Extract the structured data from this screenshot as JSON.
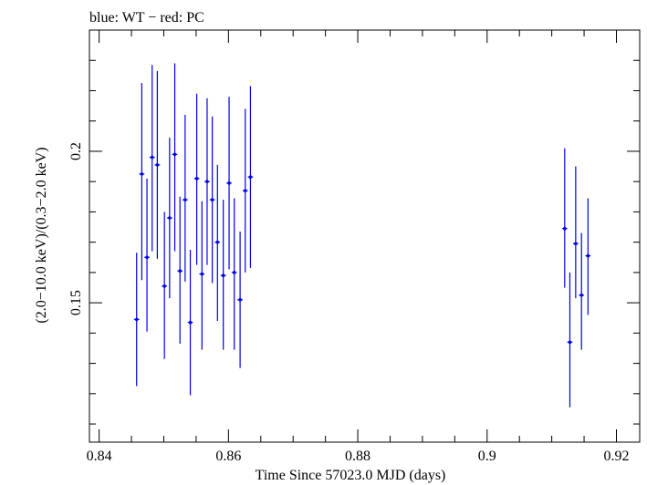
{
  "chart_data": {
    "type": "scatter",
    "title": "blue: WT − red: PC",
    "xlabel": "Time Since 57023.0 MJD (days)",
    "ylabel": "(2.0−10.0 keV)/(0.3−2.0 keV)",
    "xlim": [
      0.8385,
      0.9236
    ],
    "ylim": [
      0.104,
      0.24
    ],
    "grid": false,
    "legend": "none",
    "x_ticks": [
      {
        "value": 0.84,
        "label": "0.84"
      },
      {
        "value": 0.86,
        "label": "0.86"
      },
      {
        "value": 0.88,
        "label": "0.88"
      },
      {
        "value": 0.9,
        "label": "0.9"
      },
      {
        "value": 0.92,
        "label": "0.92"
      }
    ],
    "y_ticks": [
      {
        "value": 0.15,
        "label": "0.15"
      },
      {
        "value": 0.2,
        "label": "0.2"
      }
    ],
    "series": [
      {
        "color": "#0000ee",
        "points": [
          {
            "x": 0.8458,
            "xerr": 0.0004,
            "y": 0.1445,
            "ylo": 0.1225,
            "yhi": 0.1665
          },
          {
            "x": 0.8466,
            "xerr": 0.0004,
            "y": 0.1925,
            "ylo": 0.1575,
            "yhi": 0.2225
          },
          {
            "x": 0.8474,
            "xerr": 0.0004,
            "y": 0.165,
            "ylo": 0.1405,
            "yhi": 0.191
          },
          {
            "x": 0.8482,
            "xerr": 0.0004,
            "y": 0.198,
            "ylo": 0.167,
            "yhi": 0.2285
          },
          {
            "x": 0.849,
            "xerr": 0.0004,
            "y": 0.1955,
            "ylo": 0.1645,
            "yhi": 0.2265
          },
          {
            "x": 0.8501,
            "xerr": 0.0004,
            "y": 0.1555,
            "ylo": 0.1315,
            "yhi": 0.18
          },
          {
            "x": 0.8509,
            "xerr": 0.0004,
            "y": 0.178,
            "ylo": 0.1515,
            "yhi": 0.2045
          },
          {
            "x": 0.8517,
            "xerr": 0.0004,
            "y": 0.199,
            "ylo": 0.167,
            "yhi": 0.229
          },
          {
            "x": 0.8525,
            "xerr": 0.0004,
            "y": 0.1605,
            "ylo": 0.1365,
            "yhi": 0.185
          },
          {
            "x": 0.8533,
            "xerr": 0.0004,
            "y": 0.184,
            "ylo": 0.157,
            "yhi": 0.212
          },
          {
            "x": 0.8541,
            "xerr": 0.0004,
            "y": 0.1435,
            "ylo": 0.1195,
            "yhi": 0.1675
          },
          {
            "x": 0.8551,
            "xerr": 0.0004,
            "y": 0.191,
            "ylo": 0.1625,
            "yhi": 0.219
          },
          {
            "x": 0.8559,
            "xerr": 0.0004,
            "y": 0.1595,
            "ylo": 0.1345,
            "yhi": 0.1835
          },
          {
            "x": 0.8567,
            "xerr": 0.0004,
            "y": 0.19,
            "ylo": 0.1625,
            "yhi": 0.2175
          },
          {
            "x": 0.8575,
            "xerr": 0.0004,
            "y": 0.184,
            "ylo": 0.1565,
            "yhi": 0.2115
          },
          {
            "x": 0.8583,
            "xerr": 0.0004,
            "y": 0.17,
            "ylo": 0.144,
            "yhi": 0.1955
          },
          {
            "x": 0.8592,
            "xerr": 0.0004,
            "y": 0.159,
            "ylo": 0.1345,
            "yhi": 0.184
          },
          {
            "x": 0.8601,
            "xerr": 0.0004,
            "y": 0.1895,
            "ylo": 0.161,
            "yhi": 0.218
          },
          {
            "x": 0.8609,
            "xerr": 0.0004,
            "y": 0.16,
            "ylo": 0.1345,
            "yhi": 0.1845
          },
          {
            "x": 0.8618,
            "xerr": 0.0004,
            "y": 0.151,
            "ylo": 0.1285,
            "yhi": 0.1735
          },
          {
            "x": 0.8626,
            "xerr": 0.0004,
            "y": 0.187,
            "ylo": 0.16,
            "yhi": 0.214
          },
          {
            "x": 0.8634,
            "xerr": 0.0004,
            "y": 0.1915,
            "ylo": 0.1615,
            "yhi": 0.2215
          },
          {
            "x": 0.912,
            "xerr": 0.0004,
            "y": 0.1745,
            "ylo": 0.155,
            "yhi": 0.201
          },
          {
            "x": 0.9128,
            "xerr": 0.0004,
            "y": 0.137,
            "ylo": 0.1155,
            "yhi": 0.16
          },
          {
            "x": 0.9137,
            "xerr": 0.0004,
            "y": 0.1695,
            "ylo": 0.1515,
            "yhi": 0.195
          },
          {
            "x": 0.9146,
            "xerr": 0.0004,
            "y": 0.1525,
            "ylo": 0.1345,
            "yhi": 0.173
          },
          {
            "x": 0.9156,
            "xerr": 0.0004,
            "y": 0.1655,
            "ylo": 0.146,
            "yhi": 0.1845
          }
        ]
      }
    ]
  }
}
